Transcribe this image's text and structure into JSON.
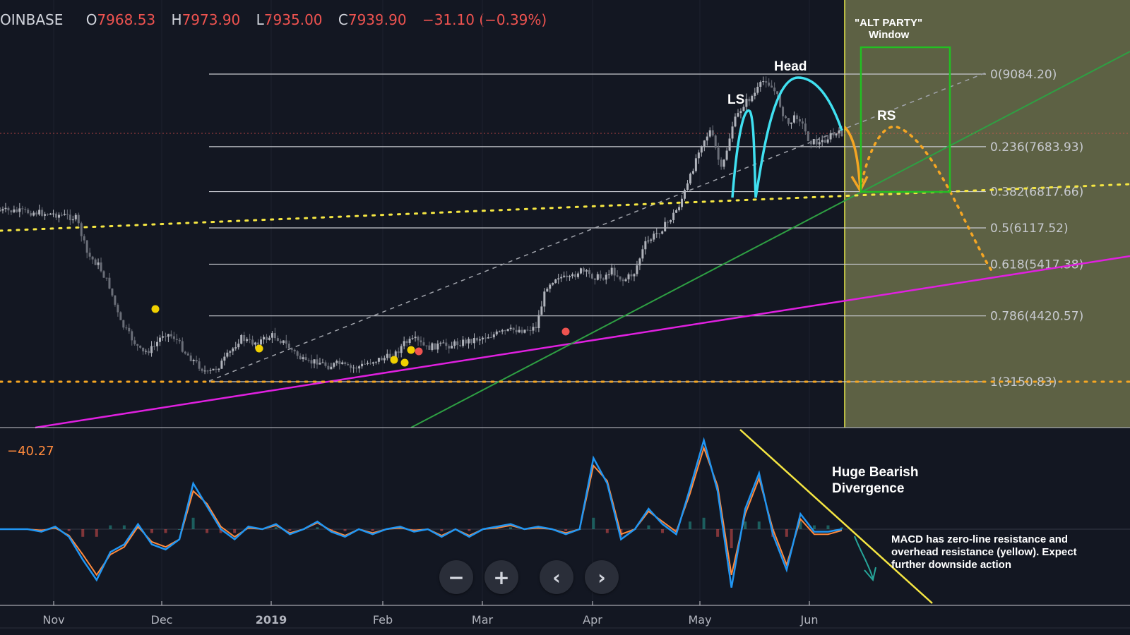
{
  "header": {
    "symbol": "OINBASE",
    "open_label": "O",
    "open": "7968.53",
    "high_label": "H",
    "high": "7973.90",
    "low_label": "L",
    "low": "7935.00",
    "close_label": "C",
    "close": "7939.90",
    "change": "−31.10 (−0.39%)"
  },
  "toolbar": {
    "zoom_out": "−",
    "zoom_in": "+",
    "scroll_left": "‹",
    "scroll_right": "›"
  },
  "colors": {
    "background": "#131722",
    "candle_up": "#b0b3bb",
    "candle_down": "#6a6e78",
    "fib": "#c8cad0",
    "support_dotted": "#f5e642",
    "bottom_dotted": "#f5a623",
    "magenta_trend": "#e020e0",
    "green_trend": "#2ea043",
    "cyan_hs": "#40e0f0",
    "orange_path": "#f5a623",
    "box_green": "#22c022",
    "macd": "#2196f3",
    "signal": "#ff8a3d",
    "alt_party_shade": "#6b6f4a"
  },
  "chart_data": [
    {
      "type": "line",
      "title": "",
      "x_ticks": [
        "Nov",
        "Dec",
        "2019",
        "Feb",
        "Mar",
        "Apr",
        "May",
        "Jun"
      ],
      "series": [
        {
          "values": [
            6450,
            6440,
            6430,
            6420,
            6400,
            6380,
            6350,
            6300,
            5600,
            5400,
            5000,
            4300,
            4000,
            3700,
            3800,
            4100,
            4000,
            3700,
            3500,
            3300,
            3450,
            3700,
            4000,
            3900,
            3950,
            4050,
            3900,
            3700,
            3500,
            3550,
            3450,
            3500,
            3400,
            3450,
            3550,
            3600,
            3650,
            3900,
            3950,
            3800,
            3850,
            3850,
            3900,
            3950,
            4000,
            4050,
            4100,
            4150,
            4150,
            4200,
            5000,
            5200,
            5100,
            5300,
            5200,
            5150,
            5300,
            5100,
            5250,
            5800,
            6000,
            6200,
            6500,
            7000,
            7700,
            8000,
            7200,
            8100,
            8500,
            8700,
            9000,
            8700,
            8100,
            8300,
            7800,
            7750,
            7900,
            7940
          ]
        }
      ],
      "fib_levels": [
        {
          "label": "0(9084.20)",
          "value": 9084.2
        },
        {
          "label": "0.236(7683.93)",
          "value": 7683.93
        },
        {
          "label": "0.382(6817.66)",
          "value": 6817.66
        },
        {
          "label": "0.5(6117.52)",
          "value": 6117.52
        },
        {
          "label": "0.618(5417.38)",
          "value": 5417.38
        },
        {
          "label": "0.786(4420.57)",
          "value": 4420.57
        },
        {
          "label": "1(3150.83)",
          "value": 3150.83
        }
      ],
      "annotations": {
        "head": "Head",
        "left_shoulder": "LS",
        "right_shoulder": "RS",
        "window_title": "\"ALT PARTY\"",
        "window_subtitle": "Window"
      },
      "grid": true
    },
    {
      "type": "line",
      "title": "",
      "current_value": "−40.27",
      "series": [
        {
          "values": [
            0,
            0,
            0,
            -10,
            10,
            -30,
            -120,
            -200,
            -90,
            -60,
            20,
            -60,
            -80,
            -40,
            180,
            90,
            0,
            -40,
            10,
            0,
            20,
            -20,
            0,
            30,
            -10,
            -30,
            0,
            -20,
            0,
            10,
            -10,
            0,
            -30,
            0,
            -30,
            0,
            10,
            20,
            0,
            10,
            0,
            -20,
            0,
            280,
            180,
            -40,
            0,
            80,
            20,
            -20,
            160,
            350,
            150,
            -230,
            80,
            220,
            -20,
            -160,
            60,
            -10,
            -10,
            0
          ]
        },
        {
          "values": [
            0,
            0,
            0,
            -5,
            5,
            -25,
            -100,
            -180,
            -100,
            -70,
            10,
            -50,
            -70,
            -40,
            150,
            100,
            10,
            -30,
            5,
            0,
            15,
            -15,
            0,
            25,
            -5,
            -25,
            0,
            -15,
            0,
            5,
            -5,
            0,
            -25,
            0,
            -25,
            0,
            5,
            15,
            0,
            5,
            0,
            -15,
            0,
            250,
            190,
            -20,
            0,
            70,
            30,
            -10,
            140,
            320,
            170,
            -180,
            60,
            200,
            0,
            -140,
            40,
            -20,
            -20,
            -5
          ]
        }
      ],
      "annotations": {
        "divergence_line1": "Huge Bearish",
        "divergence_line2": "Divergence",
        "macd_note_line1": "MACD has zero-line resistance and",
        "macd_note_line2": "overhead resistance (yellow). Expect",
        "macd_note_line3": "further downside action"
      }
    }
  ]
}
